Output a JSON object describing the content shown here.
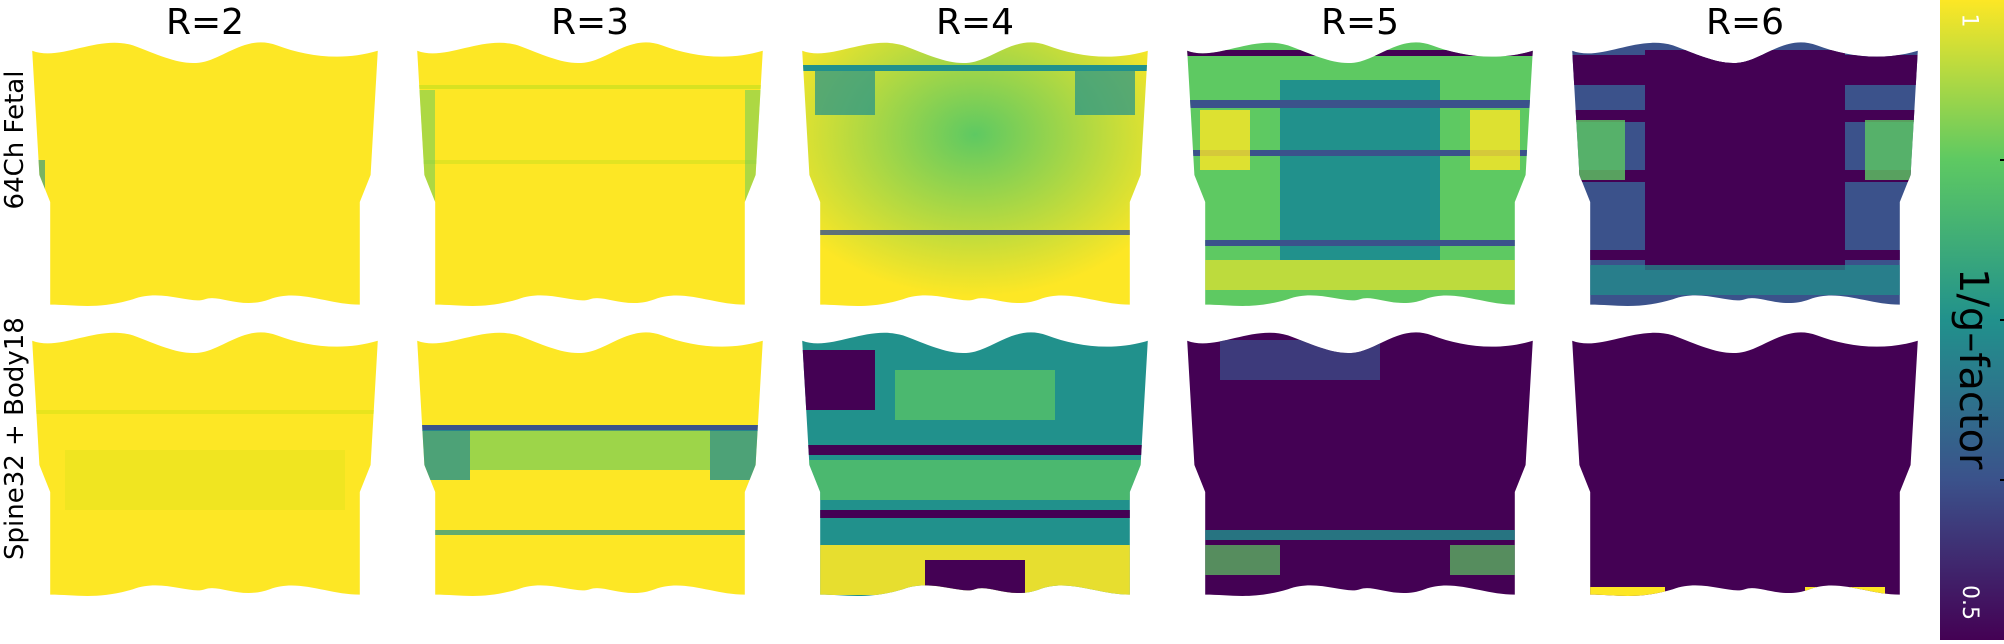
{
  "columns": [
    "R=2",
    "R=3",
    "R=4",
    "R=5",
    "R=6"
  ],
  "rows": [
    "64Ch Fetal",
    "Spine32 + Body18"
  ],
  "colorbar": {
    "label": "1/g–factor",
    "max_label": "1",
    "min_label": "0.5",
    "colormap": "viridis",
    "colors": [
      "#440154",
      "#3b528b",
      "#21918c",
      "#5ec962",
      "#fde725"
    ]
  }
}
